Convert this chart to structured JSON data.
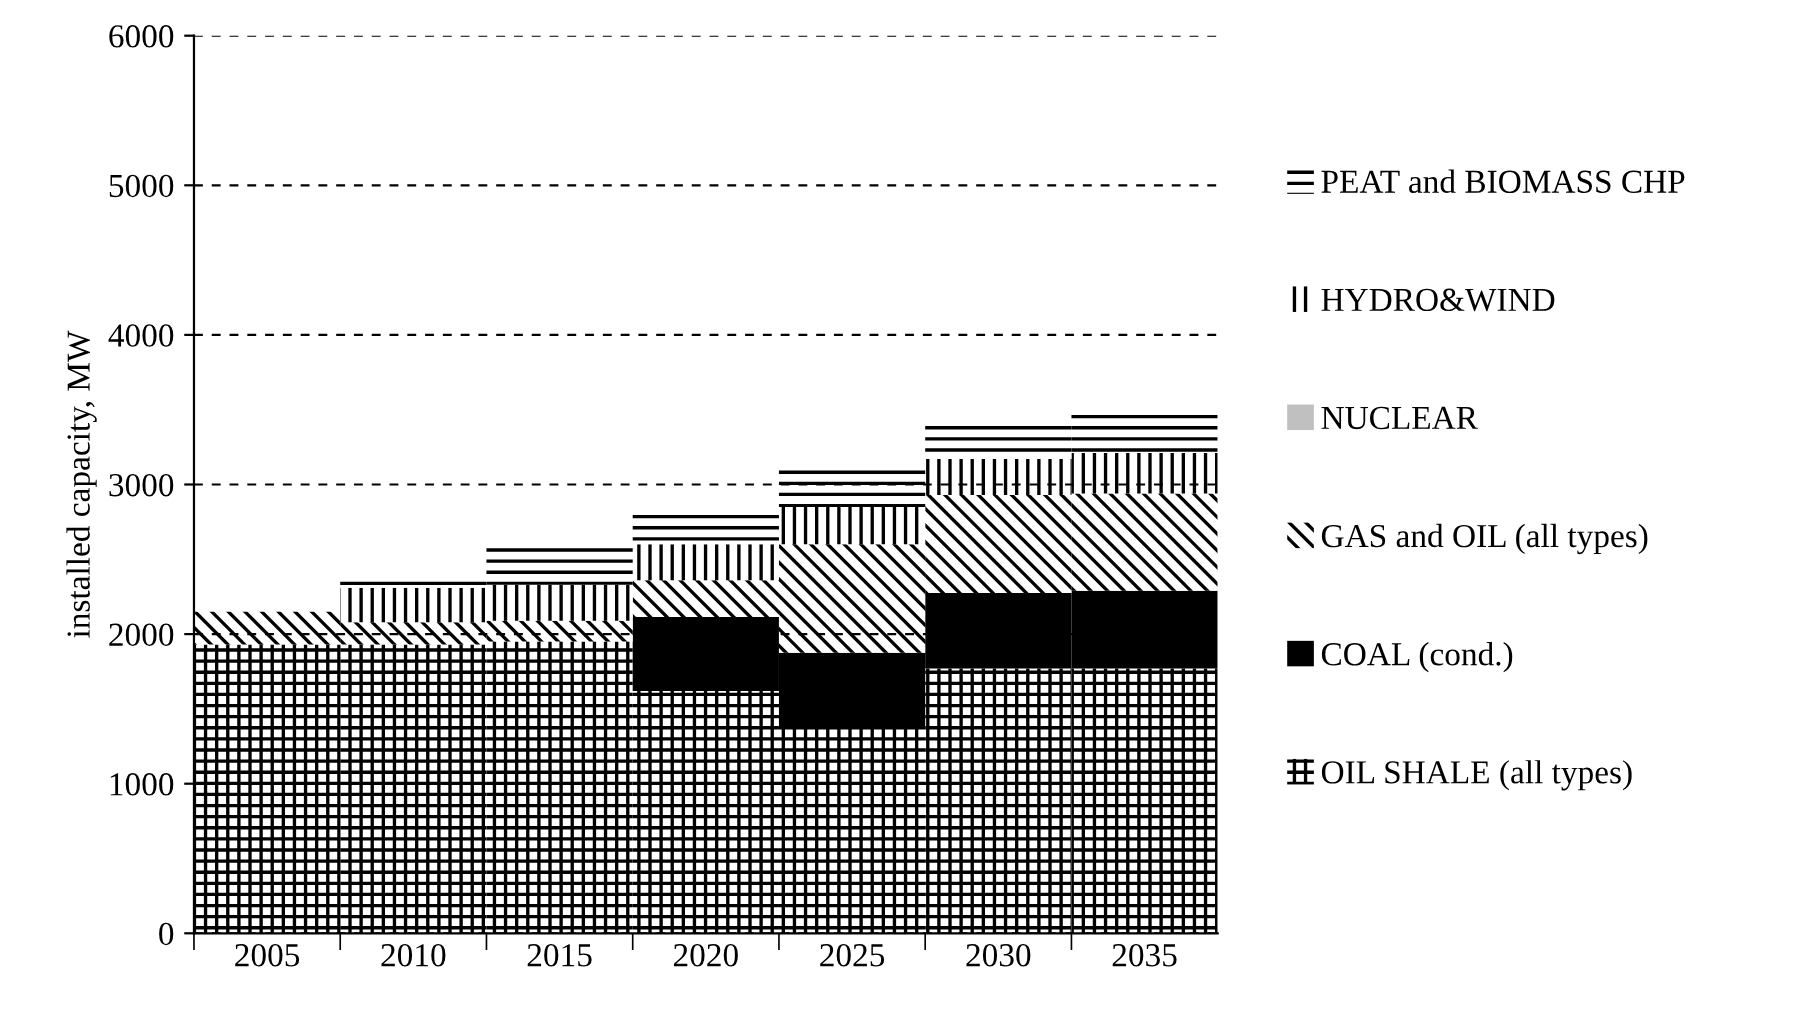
{
  "chart_data": {
    "type": "bar",
    "stacked": true,
    "ylabel": "installed capacity, MW",
    "categories": [
      "2005",
      "2010",
      "2015",
      "2020",
      "2025",
      "2030",
      "2035"
    ],
    "ylim": [
      0,
      6000
    ],
    "yticks": [
      0,
      1000,
      2000,
      3000,
      4000,
      5000,
      6000
    ],
    "grid": "y",
    "legend": "right",
    "series": [
      {
        "name": "OIL SHALE (all types)",
        "color": "#000000",
        "values": [
          1930,
          1930,
          1950,
          1620,
          1365,
          1770,
          1770
        ]
      },
      {
        "name": "COAL (cond.)",
        "color": "#000000",
        "values": [
          0,
          0,
          0,
          495,
          510,
          505,
          520
        ]
      },
      {
        "name": "GAS and OIL (all types)",
        "color": "#000000",
        "values": [
          220,
          150,
          140,
          245,
          725,
          655,
          650
        ]
      },
      {
        "name": "NUCLEAR",
        "color": "#c0c0c0",
        "values": [
          0,
          0,
          0,
          0,
          0,
          0,
          0
        ]
      },
      {
        "name": "HYDRO&WIND",
        "color": "#000000",
        "values": [
          0,
          230,
          240,
          240,
          250,
          240,
          270
        ]
      },
      {
        "name": "PEAT and BIOMASS CHP",
        "color": "#000000",
        "values": [
          0,
          70,
          280,
          240,
          280,
          260,
          300
        ]
      }
    ]
  }
}
